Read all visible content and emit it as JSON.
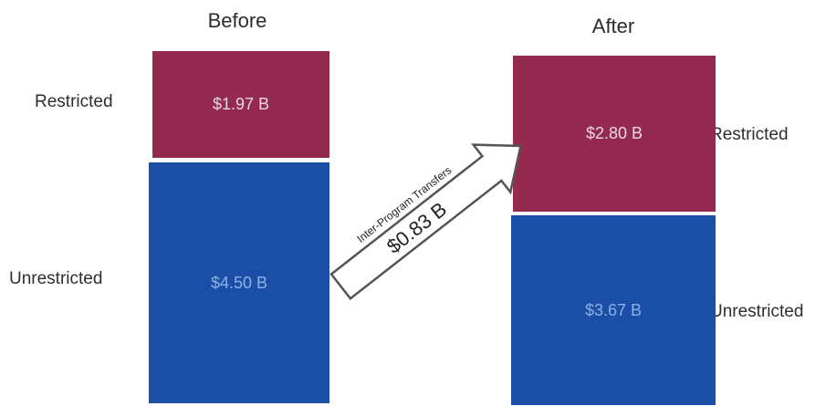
{
  "before": {
    "title": "Before",
    "restricted_label": "Restricted",
    "unrestricted_label": "Unrestricted",
    "restricted_value": "$1.97 B",
    "unrestricted_value": "$4.50 B"
  },
  "after": {
    "title": "After",
    "restricted_label": "Restricted",
    "unrestricted_label": "Unrestricted",
    "restricted_value": "$2.80 B",
    "unrestricted_value": "$3.67 B"
  },
  "transfer": {
    "caption": "Inter-Program Transfers",
    "amount": "$0.83 B"
  },
  "colors": {
    "restricted": "#952a51",
    "unrestricted": "#1b4fa7"
  }
}
